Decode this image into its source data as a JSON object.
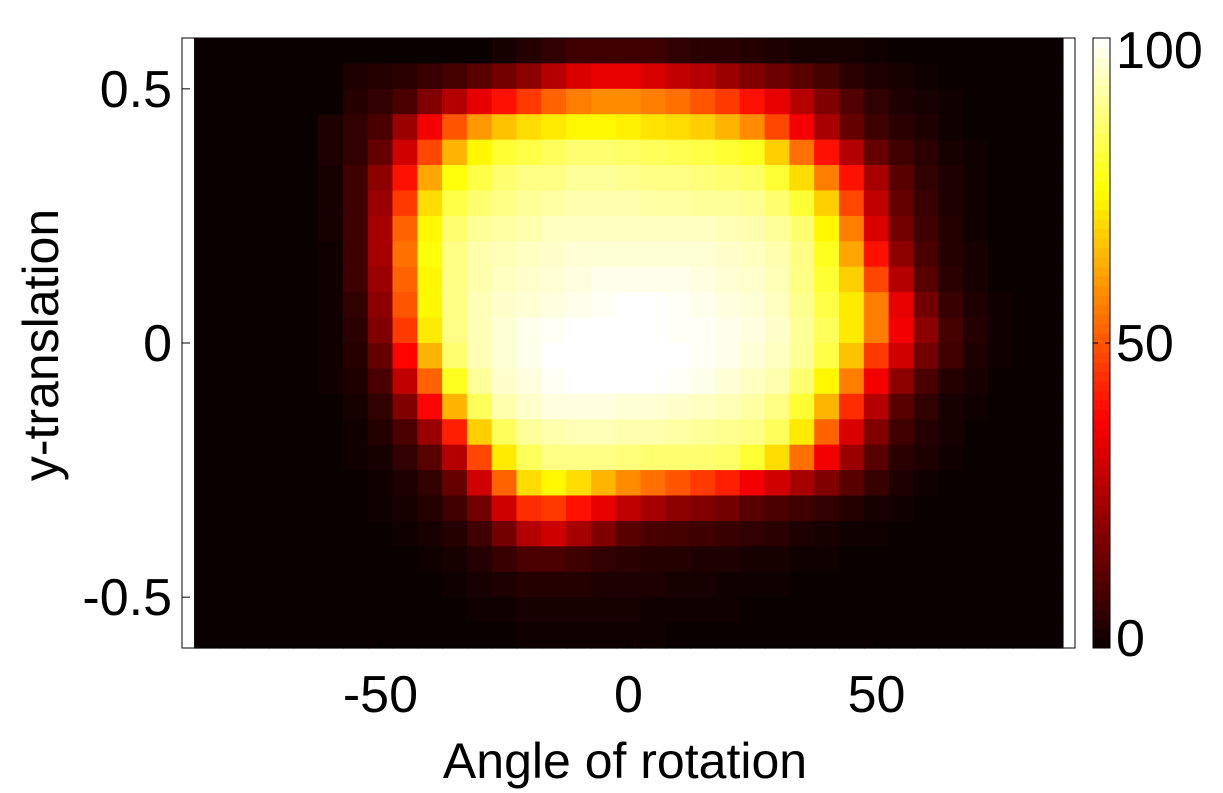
{
  "chart_data": {
    "type": "heatmap",
    "title": "",
    "xlabel": "Angle of rotation",
    "ylabel": "y-translation",
    "xlim": [
      -90,
      90
    ],
    "ylim": [
      -0.6,
      0.6
    ],
    "x_ticks": [
      {
        "value": -50,
        "label": "-50"
      },
      {
        "value": 0,
        "label": "0"
      },
      {
        "value": 50,
        "label": "50"
      }
    ],
    "y_ticks": [
      {
        "value": 0.5,
        "label": "0.5"
      },
      {
        "value": 0,
        "label": "0"
      },
      {
        "value": -0.5,
        "label": "-0.5"
      }
    ],
    "colorbar": {
      "colormap": "hot",
      "range": [
        0,
        100
      ],
      "ticks": [
        {
          "value": 100,
          "label": "100"
        },
        {
          "value": 50,
          "label": "50"
        },
        {
          "value": 0,
          "label": "0"
        }
      ]
    },
    "x_centers": [
      -85,
      -80,
      -75,
      -70,
      -65,
      -60,
      -55,
      -50,
      -45,
      -40,
      -35,
      -30,
      -25,
      -20,
      -15,
      -10,
      -5,
      0,
      5,
      10,
      15,
      20,
      25,
      30,
      35,
      40,
      45,
      50,
      55,
      60,
      65,
      70,
      75,
      80,
      85
    ],
    "y_centers": [
      0.575,
      0.525,
      0.475,
      0.425,
      0.375,
      0.325,
      0.275,
      0.225,
      0.175,
      0.125,
      0.075,
      0.025,
      -0.025,
      -0.075,
      -0.125,
      -0.175,
      -0.225,
      -0.275,
      -0.325,
      -0.375,
      -0.425,
      -0.475,
      -0.525,
      -0.575
    ],
    "grid": [
      [
        0,
        0,
        0,
        0,
        0,
        0,
        0,
        0,
        0,
        0,
        0,
        0,
        2,
        4,
        6,
        8,
        8,
        8,
        8,
        6,
        5,
        5,
        4,
        3,
        2,
        2,
        2,
        1,
        0,
        0,
        0,
        0,
        0,
        0,
        0
      ],
      [
        0,
        0,
        0,
        0,
        0,
        0,
        3,
        4,
        5,
        7,
        9,
        12,
        16,
        20,
        26,
        32,
        34,
        34,
        32,
        28,
        26,
        22,
        18,
        15,
        12,
        9,
        5,
        3,
        2,
        1,
        0,
        0,
        0,
        0,
        0
      ],
      [
        0,
        0,
        0,
        0,
        0,
        0,
        4,
        6,
        10,
        18,
        26,
        34,
        40,
        46,
        52,
        56,
        58,
        58,
        56,
        54,
        50,
        46,
        40,
        34,
        26,
        18,
        11,
        6,
        3,
        2,
        1,
        0,
        0,
        0,
        0
      ],
      [
        0,
        0,
        0,
        0,
        0,
        3,
        6,
        10,
        22,
        36,
        50,
        60,
        66,
        70,
        72,
        74,
        74,
        73,
        71,
        70,
        68,
        64,
        58,
        48,
        36,
        24,
        14,
        8,
        5,
        3,
        1,
        0,
        0,
        0,
        0
      ],
      [
        0,
        0,
        0,
        0,
        0,
        3,
        6,
        14,
        30,
        48,
        64,
        74,
        80,
        82,
        84,
        86,
        86,
        85,
        84,
        83,
        82,
        80,
        78,
        68,
        54,
        40,
        26,
        14,
        8,
        5,
        2,
        1,
        0,
        0,
        0
      ],
      [
        0,
        0,
        0,
        0,
        0,
        2,
        8,
        20,
        40,
        62,
        76,
        82,
        86,
        88,
        88,
        90,
        90,
        89,
        88,
        88,
        87,
        86,
        85,
        80,
        70,
        56,
        40,
        24,
        12,
        6,
        3,
        1,
        0,
        0,
        0
      ],
      [
        0,
        0,
        0,
        0,
        0,
        2,
        8,
        22,
        46,
        70,
        82,
        86,
        88,
        90,
        91,
        92,
        92,
        92,
        91,
        91,
        90,
        90,
        89,
        86,
        80,
        68,
        48,
        28,
        14,
        7,
        3,
        1,
        0,
        0,
        0
      ],
      [
        0,
        0,
        0,
        0,
        0,
        2,
        8,
        24,
        52,
        74,
        86,
        90,
        91,
        92,
        94,
        94,
        94,
        94,
        94,
        94,
        94,
        93,
        92,
        90,
        86,
        74,
        56,
        32,
        16,
        8,
        4,
        1,
        0,
        0,
        0
      ],
      [
        0,
        0,
        0,
        0,
        0,
        1,
        8,
        24,
        54,
        76,
        88,
        92,
        93,
        94,
        95,
        96,
        96,
        96,
        96,
        96,
        96,
        95,
        94,
        92,
        88,
        78,
        62,
        40,
        20,
        10,
        4,
        2,
        0,
        0,
        0
      ],
      [
        0,
        0,
        0,
        0,
        0,
        1,
        8,
        22,
        52,
        74,
        88,
        92,
        94,
        95,
        96,
        97,
        98,
        98,
        98,
        98,
        97,
        96,
        95,
        93,
        88,
        80,
        68,
        48,
        26,
        12,
        5,
        2,
        0,
        0,
        0
      ],
      [
        0,
        0,
        0,
        0,
        0,
        1,
        6,
        20,
        50,
        74,
        88,
        93,
        95,
        96,
        97,
        98,
        99,
        100,
        100,
        99,
        98,
        97,
        96,
        94,
        89,
        82,
        72,
        56,
        34,
        16,
        7,
        3,
        1,
        0,
        0
      ],
      [
        0,
        0,
        0,
        0,
        0,
        1,
        5,
        18,
        46,
        72,
        88,
        93,
        96,
        98,
        99,
        100,
        100,
        100,
        100,
        99,
        99,
        98,
        97,
        95,
        90,
        84,
        72,
        56,
        36,
        20,
        9,
        4,
        1,
        0,
        0
      ],
      [
        0,
        0,
        0,
        0,
        0,
        1,
        4,
        14,
        38,
        64,
        86,
        93,
        96,
        98,
        100,
        100,
        100,
        100,
        100,
        100,
        99,
        98,
        96,
        94,
        90,
        82,
        66,
        46,
        30,
        16,
        8,
        3,
        1,
        0,
        0
      ],
      [
        0,
        0,
        0,
        0,
        0,
        1,
        3,
        10,
        28,
        52,
        78,
        90,
        95,
        97,
        99,
        100,
        100,
        100,
        100,
        99,
        98,
        96,
        94,
        92,
        86,
        74,
        56,
        36,
        20,
        10,
        4,
        2,
        0,
        0,
        0
      ],
      [
        0,
        0,
        0,
        0,
        0,
        0,
        2,
        6,
        18,
        38,
        64,
        84,
        92,
        95,
        97,
        97,
        97,
        96,
        96,
        95,
        94,
        93,
        91,
        88,
        80,
        64,
        44,
        26,
        12,
        6,
        2,
        1,
        0,
        0,
        0
      ],
      [
        0,
        0,
        0,
        0,
        0,
        0,
        1,
        4,
        10,
        22,
        42,
        68,
        84,
        90,
        92,
        93,
        93,
        92,
        92,
        91,
        90,
        89,
        88,
        84,
        72,
        52,
        32,
        18,
        8,
        4,
        2,
        0,
        0,
        0,
        0
      ],
      [
        0,
        0,
        0,
        0,
        0,
        0,
        1,
        2,
        6,
        12,
        26,
        48,
        72,
        84,
        88,
        88,
        88,
        87,
        86,
        86,
        86,
        85,
        80,
        70,
        54,
        36,
        22,
        12,
        5,
        3,
        1,
        0,
        0,
        0,
        0
      ],
      [
        0,
        0,
        0,
        0,
        0,
        0,
        0,
        1,
        3,
        6,
        14,
        30,
        52,
        70,
        74,
        70,
        64,
        58,
        54,
        50,
        46,
        42,
        36,
        30,
        24,
        18,
        12,
        7,
        3,
        1,
        0,
        0,
        0,
        0,
        0
      ],
      [
        0,
        0,
        0,
        0,
        0,
        0,
        0,
        1,
        2,
        4,
        8,
        16,
        30,
        44,
        46,
        40,
        34,
        28,
        24,
        20,
        18,
        16,
        12,
        10,
        8,
        6,
        4,
        2,
        1,
        0,
        0,
        0,
        0,
        0,
        0
      ],
      [
        0,
        0,
        0,
        0,
        0,
        0,
        0,
        0,
        1,
        2,
        4,
        8,
        16,
        26,
        30,
        24,
        18,
        12,
        10,
        9,
        8,
        7,
        6,
        5,
        3,
        2,
        1,
        1,
        0,
        0,
        0,
        0,
        0,
        0,
        0
      ],
      [
        0,
        0,
        0,
        0,
        0,
        0,
        0,
        0,
        0,
        1,
        2,
        4,
        7,
        10,
        10,
        8,
        6,
        5,
        4,
        4,
        3,
        3,
        2,
        2,
        1,
        1,
        0,
        0,
        0,
        0,
        0,
        0,
        0,
        0,
        0
      ],
      [
        0,
        0,
        0,
        0,
        0,
        0,
        0,
        0,
        0,
        0,
        1,
        2,
        3,
        4,
        4,
        4,
        3,
        3,
        3,
        2,
        2,
        1,
        1,
        1,
        0,
        0,
        0,
        0,
        0,
        0,
        0,
        0,
        0,
        0,
        0
      ],
      [
        0,
        0,
        0,
        0,
        0,
        0,
        0,
        0,
        0,
        0,
        0,
        1,
        1,
        2,
        2,
        2,
        2,
        2,
        1,
        1,
        1,
        1,
        0,
        0,
        0,
        0,
        0,
        0,
        0,
        0,
        0,
        0,
        0,
        0,
        0
      ],
      [
        0,
        0,
        0,
        0,
        0,
        0,
        0,
        0,
        0,
        0,
        0,
        0,
        0,
        1,
        1,
        1,
        1,
        1,
        1,
        0,
        0,
        0,
        0,
        0,
        0,
        0,
        0,
        0,
        0,
        0,
        0,
        0,
        0,
        0,
        0
      ]
    ]
  }
}
